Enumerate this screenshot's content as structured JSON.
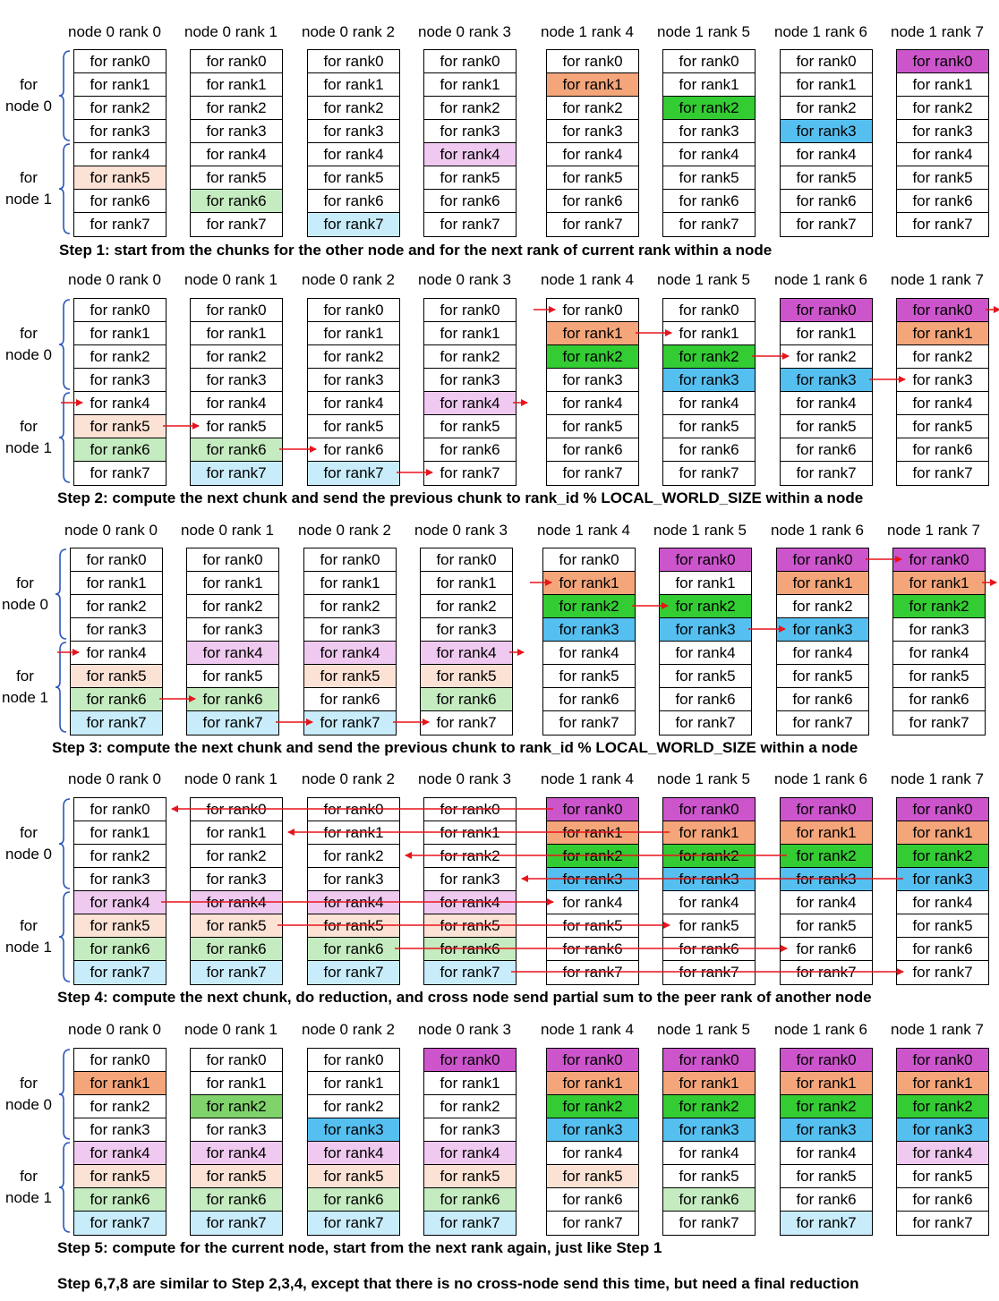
{
  "ranks": [
    "node 0 rank 0",
    "node 0 rank 1",
    "node 0 rank 2",
    "node 0 rank 3",
    "node 1 rank 4",
    "node 1 rank 5",
    "node 1 rank 6",
    "node 1 rank 7"
  ],
  "chunks": [
    "for rank0",
    "for rank1",
    "for rank2",
    "for rank3",
    "for rank4",
    "for rank5",
    "for rank6",
    "for rank7"
  ],
  "group_labels": {
    "node0": "for\nnode 0",
    "node1": "for\nnode 1"
  },
  "colors": {
    "rank0": "#cc55cc",
    "rank1": "#f4a57a",
    "rank2": "#33cc33",
    "rank3": "#55bff0",
    "rank4": "#efc9ef",
    "rank5": "#fbe2d4",
    "rank6": "#c5ebc0",
    "rank7": "#c8ecfa",
    "arrow": "#e8141b"
  },
  "steps": [
    {
      "caption": "Step 1: start from the chunks for the other node and for the next rank of current rank within a node",
      "highlights": [
        [
          5
        ],
        [
          6
        ],
        [
          7
        ],
        [
          4
        ],
        [
          1
        ],
        [
          2
        ],
        [
          3
        ],
        [
          0
        ]
      ]
    },
    {
      "caption": "Step 2: compute the next chunk and send the previous chunk to rank_id % LOCAL_WORLD_SIZE within a node",
      "highlights": [
        [
          5,
          6
        ],
        [
          6,
          7
        ],
        [
          7
        ],
        [
          4
        ],
        [
          1,
          2
        ],
        [
          2,
          3
        ],
        [
          3,
          0
        ],
        [
          0,
          1
        ]
      ]
    },
    {
      "caption": "Step 3: compute the next chunk and send the previous chunk to rank_id % LOCAL_WORLD_SIZE within a node",
      "highlights": [
        [
          5,
          6,
          7
        ],
        [
          6,
          7,
          4
        ],
        [
          7,
          4,
          5
        ],
        [
          4,
          5,
          6
        ],
        [
          1,
          2,
          3
        ],
        [
          2,
          3,
          0
        ],
        [
          3,
          0,
          1
        ],
        [
          0,
          1,
          2
        ]
      ]
    },
    {
      "caption": "Step 4: compute the next chunk, do reduction, and cross node send partial sum to the peer rank of another node",
      "highlights": [
        [
          4,
          5,
          6,
          7
        ],
        [
          4,
          5,
          6,
          7
        ],
        [
          4,
          5,
          6,
          7
        ],
        [
          4,
          5,
          6,
          7
        ],
        [
          0,
          1,
          2,
          3
        ],
        [
          0,
          1,
          2,
          3
        ],
        [
          0,
          1,
          2,
          3
        ],
        [
          0,
          1,
          2,
          3
        ]
      ]
    },
    {
      "caption": "Step 5: compute for the current node, start from the next rank again, just like Step 1",
      "highlights": [
        [
          1,
          4,
          5,
          6,
          7
        ],
        [
          2,
          4,
          5,
          6,
          7
        ],
        [
          3,
          4,
          5,
          6,
          7
        ],
        [
          0,
          4,
          5,
          6,
          7
        ],
        [
          0,
          1,
          2,
          3,
          5
        ],
        [
          0,
          1,
          2,
          3,
          6
        ],
        [
          0,
          1,
          2,
          3,
          7
        ],
        [
          0,
          1,
          2,
          3,
          4
        ]
      ]
    }
  ],
  "final_note": "Step 6,7,8 are similar to Step 2,3,4, except that there is no cross-node send this time, but need a final reduction"
}
